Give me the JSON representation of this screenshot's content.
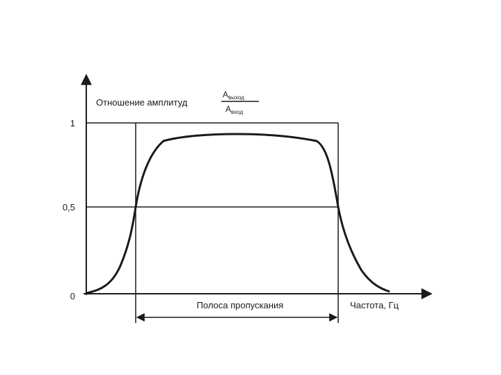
{
  "diagram": {
    "y_axis_label": "Отношение амплитуд",
    "ratio_numerator": "А",
    "ratio_numerator_sub": "выход",
    "ratio_denominator": "А",
    "ratio_denominator_sub": "вход",
    "y_ticks": [
      "1",
      "0,5",
      "0"
    ],
    "x_axis_label": "Частота, Гц",
    "band_label": "Полоса пропускания"
  }
}
